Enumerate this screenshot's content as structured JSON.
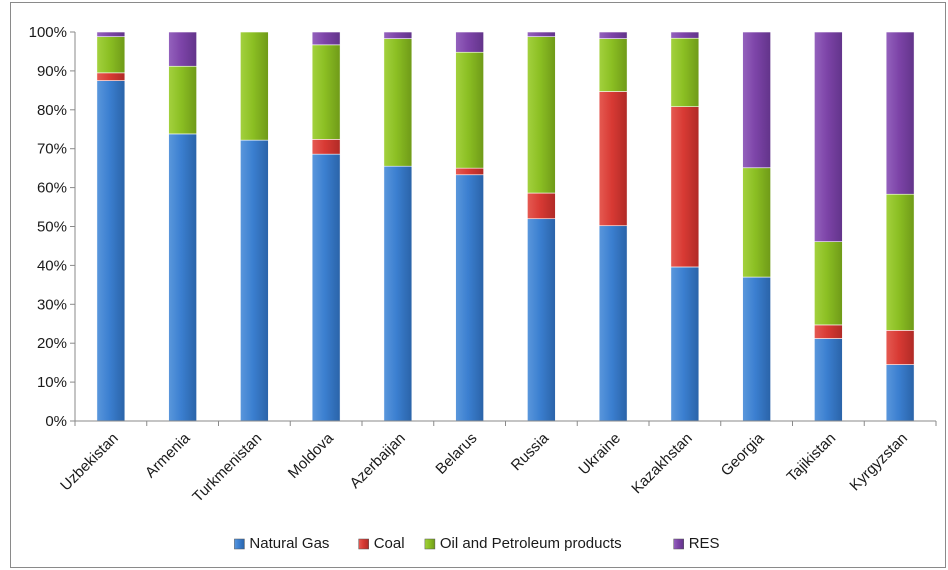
{
  "chart_data": {
    "type": "bar",
    "stacked": true,
    "percent_stacked": true,
    "title": "",
    "xlabel": "",
    "ylabel": "",
    "ylim": [
      0,
      100
    ],
    "y_ticks": [
      "0%",
      "10%",
      "20%",
      "30%",
      "40%",
      "50%",
      "60%",
      "70%",
      "80%",
      "90%",
      "100%"
    ],
    "grid": false,
    "legend_position": "bottom",
    "categories": [
      "Uzbekistan",
      "Armenia",
      "Turkmenistan",
      "Moldova",
      "Azerbaijan",
      "Belarus",
      "Russia",
      "Ukraine",
      "Kazakhstan",
      "Georgia",
      "Tajikistan",
      "Kyrgyzstan"
    ],
    "series": [
      {
        "name": "Natural Gas",
        "color": "#3b7fd0",
        "values": [
          87.5,
          73.8,
          72.2,
          68.6,
          65.5,
          63.3,
          52.0,
          50.2,
          39.6,
          37.0,
          21.2,
          14.5
        ]
      },
      {
        "name": "Coal",
        "color": "#d83a34",
        "values": [
          2.0,
          0.0,
          0.0,
          3.8,
          0.0,
          1.7,
          6.6,
          34.5,
          41.2,
          0.0,
          3.5,
          8.8
        ]
      },
      {
        "name": "Oil and Petroleum products",
        "color": "#8bbf23",
        "values": [
          9.3,
          17.4,
          27.8,
          24.3,
          32.8,
          29.8,
          40.2,
          13.6,
          17.6,
          28.1,
          21.4,
          35.0
        ]
      },
      {
        "name": "RES",
        "color": "#7d44a8",
        "values": [
          1.2,
          8.8,
          0.0,
          3.3,
          1.7,
          5.2,
          1.2,
          1.7,
          1.6,
          34.9,
          53.9,
          41.7
        ]
      }
    ]
  }
}
